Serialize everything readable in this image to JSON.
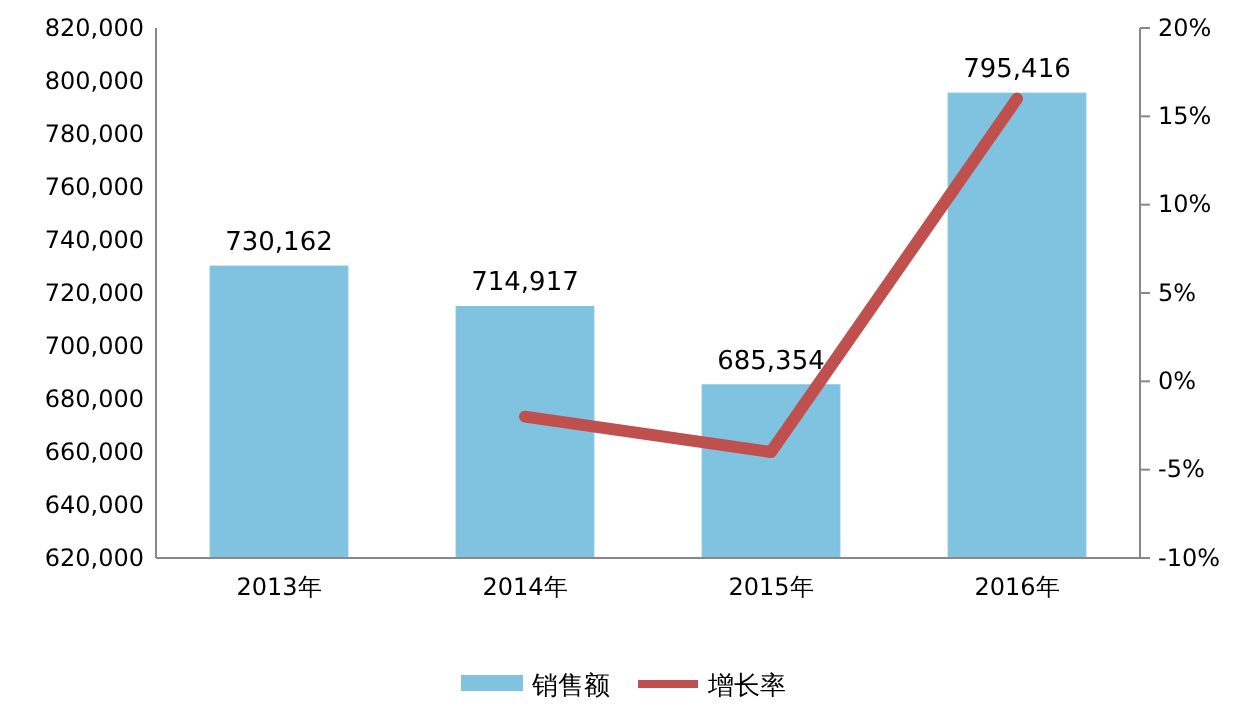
{
  "chart_data": {
    "type": "bar",
    "categories": [
      "2013年",
      "2014年",
      "2015年",
      "2016年"
    ],
    "series": [
      {
        "name": "销售额",
        "color": "#7fc3e0",
        "values": [
          730162,
          714917,
          685354,
          795416
        ],
        "value_labels": [
          "730,162",
          "714,917",
          "685,354",
          "795,416"
        ]
      },
      {
        "name": "增长率",
        "type": "line",
        "axis": "y2",
        "color": "#c0504d",
        "values": [
          null,
          -2,
          -4,
          16
        ]
      }
    ],
    "ylim": [
      620000,
      820000
    ],
    "yticks": [
      {
        "value": 620000,
        "label": "620,000"
      },
      {
        "value": 640000,
        "label": "640,000"
      },
      {
        "value": 660000,
        "label": "660,000"
      },
      {
        "value": 680000,
        "label": "680,000"
      },
      {
        "value": 700000,
        "label": "700,000"
      },
      {
        "value": 720000,
        "label": "720,000"
      },
      {
        "value": 740000,
        "label": "740,000"
      },
      {
        "value": 760000,
        "label": "760,000"
      },
      {
        "value": 780000,
        "label": "780,000"
      },
      {
        "value": 800000,
        "label": "800,000"
      },
      {
        "value": 820000,
        "label": "820,000"
      }
    ],
    "y2lim": [
      -10,
      20
    ],
    "y2ticks": [
      {
        "value": -10,
        "label": "-10%"
      },
      {
        "value": -5,
        "label": "-5%"
      },
      {
        "value": 0,
        "label": "0%"
      },
      {
        "value": 5,
        "label": "5%"
      },
      {
        "value": 10,
        "label": "10%"
      },
      {
        "value": 15,
        "label": "15%"
      },
      {
        "value": 20,
        "label": "20%"
      }
    ],
    "grid": false,
    "legend": "bottom",
    "marker": "none",
    "line_style": "solid"
  }
}
